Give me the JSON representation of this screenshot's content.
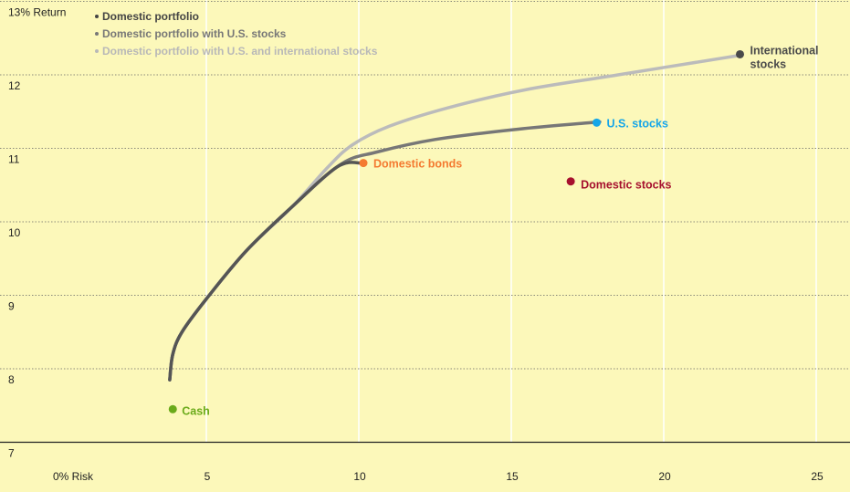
{
  "chart_data": {
    "type": "scatter",
    "title": "",
    "xlabel": "Risk",
    "ylabel": "Return",
    "xlim": [
      0,
      26
    ],
    "ylim": [
      7,
      13
    ],
    "grid": true,
    "legend_position": "top-left",
    "x_tick_labels": [
      {
        "value": 0,
        "label": "0% Risk"
      },
      {
        "value": 5,
        "label": "5"
      },
      {
        "value": 10,
        "label": "10"
      },
      {
        "value": 15,
        "label": "15"
      },
      {
        "value": 20,
        "label": "20"
      },
      {
        "value": 25,
        "label": "25"
      }
    ],
    "y_tick_labels": [
      {
        "value": 13,
        "label": "13% Return"
      },
      {
        "value": 12,
        "label": "12"
      },
      {
        "value": 11,
        "label": "11"
      },
      {
        "value": 10,
        "label": "10"
      },
      {
        "value": 9,
        "label": "9"
      },
      {
        "value": 8,
        "label": "8"
      },
      {
        "value": 7,
        "label": "7"
      }
    ],
    "series": [
      {
        "name": "Domestic portfolio",
        "color": "#555555",
        "points": [
          [
            3.8,
            7.85
          ],
          [
            3.9,
            8.2
          ],
          [
            4.2,
            8.5
          ],
          [
            5.0,
            8.95
          ],
          [
            6.3,
            9.6
          ],
          [
            7.8,
            10.2
          ],
          [
            9.3,
            10.75
          ],
          [
            10.1,
            10.8
          ]
        ]
      },
      {
        "name": "Domestic portfolio with U.S. stocks",
        "color": "#777777",
        "points": [
          [
            3.8,
            7.85
          ],
          [
            3.9,
            8.2
          ],
          [
            4.2,
            8.5
          ],
          [
            5.0,
            8.95
          ],
          [
            6.3,
            9.6
          ],
          [
            7.8,
            10.2
          ],
          [
            9.4,
            10.78
          ],
          [
            10.6,
            10.95
          ],
          [
            12.5,
            11.12
          ],
          [
            15.2,
            11.26
          ],
          [
            17.9,
            11.36
          ]
        ]
      },
      {
        "name": "Domestic portfolio with U.S. and international stocks",
        "color": "#bbbbbb",
        "points": [
          [
            3.8,
            7.85
          ],
          [
            3.9,
            8.2
          ],
          [
            4.2,
            8.5
          ],
          [
            5.0,
            8.95
          ],
          [
            6.3,
            9.6
          ],
          [
            7.8,
            10.2
          ],
          [
            9.0,
            10.75
          ],
          [
            9.8,
            11.05
          ],
          [
            11.0,
            11.3
          ],
          [
            13.0,
            11.56
          ],
          [
            15.5,
            11.8
          ],
          [
            18.5,
            12.0
          ],
          [
            22.4,
            12.26
          ]
        ]
      }
    ],
    "points": [
      {
        "label": "Cash",
        "x": 3.9,
        "y": 7.45,
        "color": "#6aaa1a"
      },
      {
        "label": "Domestic bonds",
        "x": 10.15,
        "y": 10.8,
        "color": "#f47a30"
      },
      {
        "label": "U.S. stocks",
        "x": 17.8,
        "y": 11.35,
        "color": "#16a6e8"
      },
      {
        "label": "Domestic stocks",
        "x": 16.95,
        "y": 10.55,
        "color": "#a6102e"
      },
      {
        "label": "International stocks",
        "label_lines": [
          "International",
          "stocks"
        ],
        "x": 22.5,
        "y": 12.28,
        "color": "#4a4a4a"
      }
    ]
  }
}
